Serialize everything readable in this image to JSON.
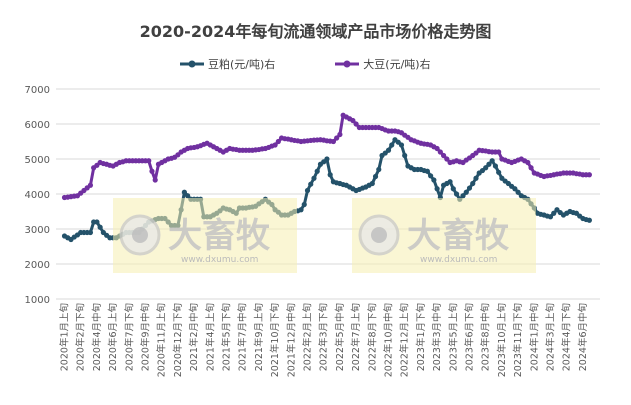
{
  "chart_data": {
    "type": "line",
    "title": "2020-2024年每旬流通领域产品市场价格走势图",
    "ylim": [
      1000,
      7000
    ],
    "y_ticks": [
      1000,
      2000,
      3000,
      4000,
      5000,
      6000,
      7000
    ],
    "x_tick_labels": [
      "2020年1月上旬",
      "2020年2月下旬",
      "2020年4月中旬",
      "2020年6月上旬",
      "2020年7月下旬",
      "2020年9月中旬",
      "2020年11月上旬",
      "2020年12月下旬",
      "2021年2月中旬",
      "2021年4月上旬",
      "2021年5月下旬",
      "2021年7月中旬",
      "2021年9月上旬",
      "2021年10月下旬",
      "2021年12月中旬",
      "2022年2月上旬",
      "2022年3月下旬",
      "2022年5月中旬",
      "2022年7月上旬",
      "2022年8月下旬",
      "2022年10月中旬",
      "2022年12月上旬",
      "2023年1月下旬",
      "2023年3月中旬",
      "2023年5月上旬",
      "2023年6月下旬",
      "2023年8月中旬",
      "2023年10月上旬",
      "2023年11月下旬",
      "2024年1月中旬",
      "2024年3月上旬",
      "2024年4月下旬",
      "2024年6月中旬"
    ],
    "grid": true,
    "legend_position": "top",
    "series": [
      {
        "name": "豆粕(元/吨)右",
        "color": "#24526A",
        "values": [
          2800,
          2750,
          2700,
          2770,
          2830,
          2900,
          2900,
          2900,
          2900,
          3200,
          3200,
          3050,
          2900,
          2820,
          2750,
          2750,
          2750,
          2800,
          2850,
          2900,
          2900,
          2900,
          2900,
          2900,
          3000,
          3100,
          3200,
          3230,
          3270,
          3300,
          3300,
          3300,
          3200,
          3100,
          3100,
          3100,
          3550,
          4050,
          3950,
          3850,
          3850,
          3850,
          3850,
          3350,
          3350,
          3350,
          3400,
          3450,
          3520,
          3600,
          3570,
          3550,
          3500,
          3450,
          3600,
          3600,
          3600,
          3620,
          3630,
          3650,
          3720,
          3780,
          3850,
          3770,
          3700,
          3550,
          3480,
          3400,
          3400,
          3400,
          3450,
          3500,
          3520,
          3550,
          3700,
          4100,
          4280,
          4450,
          4650,
          4850,
          4920,
          5000,
          4550,
          4350,
          4320,
          4300,
          4270,
          4250,
          4200,
          4150,
          4100,
          4130,
          4170,
          4200,
          4250,
          4300,
          4500,
          4700,
          5100,
          5170,
          5250,
          5400,
          5550,
          5480,
          5400,
          5100,
          4800,
          4750,
          4700,
          4700,
          4700,
          4670,
          4650,
          4520,
          4400,
          4150,
          3900,
          4250,
          4300,
          4350,
          4150,
          4000,
          3850,
          3950,
          4050,
          4170,
          4300,
          4450,
          4600,
          4670,
          4750,
          4850,
          4950,
          4800,
          4620,
          4450,
          4370,
          4300,
          4220,
          4150,
          4050,
          3950,
          3900,
          3850,
          3720,
          3600,
          3450,
          3420,
          3400,
          3370,
          3350,
          3450,
          3550,
          3470,
          3400,
          3450,
          3500,
          3470,
          3450,
          3370,
          3300,
          3270,
          3250
        ]
      },
      {
        "name": "大豆(元/吨)右",
        "color": "#7030A0",
        "values": [
          3900,
          3910,
          3925,
          3940,
          3950,
          4025,
          4100,
          4175,
          4250,
          4750,
          4820,
          4900,
          4870,
          4850,
          4820,
          4800,
          4850,
          4900,
          4920,
          4950,
          4950,
          4950,
          4950,
          4950,
          4950,
          4950,
          4950,
          4650,
          4400,
          4850,
          4900,
          4950,
          5000,
          5020,
          5050,
          5120,
          5200,
          5250,
          5300,
          5320,
          5330,
          5350,
          5380,
          5420,
          5450,
          5400,
          5350,
          5300,
          5250,
          5200,
          5250,
          5300,
          5280,
          5270,
          5250,
          5250,
          5250,
          5250,
          5250,
          5260,
          5270,
          5290,
          5300,
          5330,
          5370,
          5400,
          5500,
          5600,
          5580,
          5570,
          5550,
          5530,
          5520,
          5500,
          5510,
          5520,
          5530,
          5540,
          5545,
          5550,
          5540,
          5520,
          5510,
          5500,
          5600,
          5700,
          6250,
          6200,
          6150,
          6100,
          6000,
          5900,
          5900,
          5900,
          5900,
          5900,
          5900,
          5900,
          5870,
          5830,
          5800,
          5800,
          5800,
          5780,
          5750,
          5680,
          5620,
          5550,
          5520,
          5480,
          5450,
          5430,
          5420,
          5400,
          5350,
          5300,
          5200,
          5100,
          5000,
          4900,
          4920,
          4950,
          4920,
          4900,
          4970,
          5030,
          5100,
          5170,
          5250,
          5240,
          5230,
          5210,
          5200,
          5200,
          5200,
          5000,
          4970,
          4930,
          4900,
          4930,
          4970,
          5000,
          4950,
          4900,
          4750,
          4600,
          4570,
          4530,
          4500,
          4520,
          4530,
          4550,
          4570,
          4580,
          4600,
          4600,
          4600,
          4600,
          4580,
          4570,
          4550,
          4550,
          4550
        ]
      }
    ]
  },
  "watermark": {
    "brand": "大畜牧",
    "url": "www.dxumu.com",
    "color": "#F5EFB0"
  }
}
